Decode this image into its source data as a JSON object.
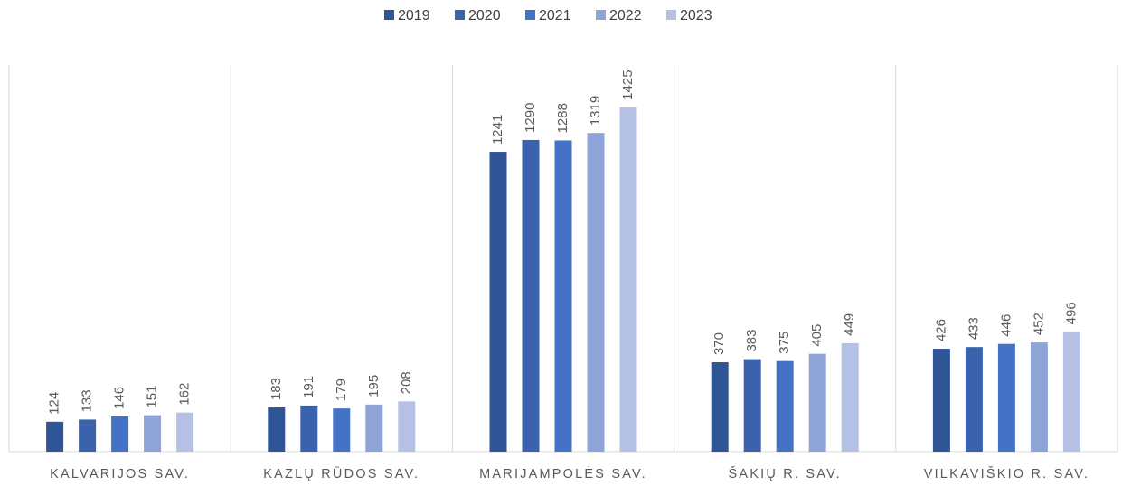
{
  "chart_data": {
    "type": "bar",
    "categories": [
      "KALVARIJOS SAV.",
      "KAZLŲ RŪDOS SAV.",
      "MARIJAMPOLĖS SAV.",
      "ŠAKIŲ R. SAV.",
      "VILKAVIŠKIO R. SAV."
    ],
    "series": [
      {
        "name": "2019",
        "color": "#2f5597",
        "values": [
          124,
          183,
          1241,
          370,
          426
        ]
      },
      {
        "name": "2020",
        "color": "#3a62ad",
        "values": [
          133,
          191,
          1290,
          383,
          433
        ]
      },
      {
        "name": "2021",
        "color": "#4472c4",
        "values": [
          146,
          179,
          1288,
          375,
          446
        ]
      },
      {
        "name": "2022",
        "color": "#8fa4d6",
        "values": [
          151,
          195,
          1319,
          405,
          452
        ]
      },
      {
        "name": "2023",
        "color": "#b4c1e4",
        "values": [
          162,
          208,
          1425,
          449,
          496
        ]
      }
    ],
    "ylim": [
      0,
      1600
    ],
    "legend": "top"
  }
}
